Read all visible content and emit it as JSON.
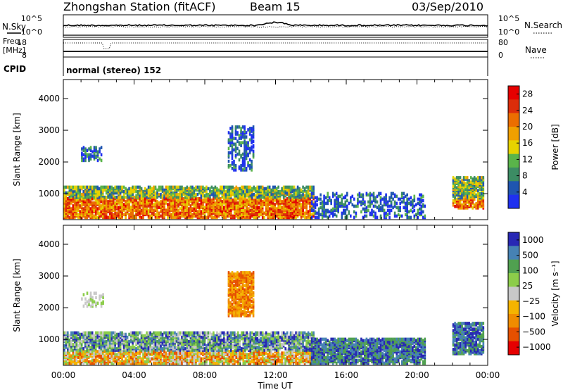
{
  "header": {
    "station": "Zhongshan Station (fitACF)",
    "beam": "Beam 15",
    "date": "03/Sep/2010"
  },
  "strip1": {
    "left_label": "N.Sky",
    "left_top": "10^5",
    "left_bottom": "10^0",
    "right_top": "10^5",
    "right_bottom": "10^0",
    "right_label": "N.Search"
  },
  "strip2": {
    "left_label_1": "Freq.",
    "left_label_2": "[MHz]",
    "left_top": "18",
    "left_bottom": "8",
    "right_top": "80",
    "right_bottom": "0",
    "right_label": "Nave",
    "cpid_label": "CPID",
    "cpid_value": "normal (stereo) 152"
  },
  "colors": {
    "power": [
      "#1f30f0",
      "#1f55b0",
      "#3c8c64",
      "#5ab44a",
      "#e6d200",
      "#f0a000",
      "#eb6e00",
      "#dc2d0a",
      "#e60000"
    ],
    "velocity": [
      "#e60000",
      "#e65000",
      "#f08c00",
      "#f5b400",
      "#c8c8c8",
      "#8ccd4a",
      "#50a050",
      "#4682b4",
      "#2828b4"
    ]
  },
  "chart_data": [
    {
      "type": "heatmap",
      "title": "Power",
      "ylabel": "Slant Range [km]",
      "xlabel": "Time UT",
      "x_ticks": [
        "00:00",
        "04:00",
        "08:00",
        "12:00",
        "16:00",
        "20:00",
        "00:00"
      ],
      "y_ticks": [
        1000,
        2000,
        3000,
        4000
      ],
      "ylim": [
        180,
        4600
      ],
      "colorbar": {
        "label": "Power [dB]",
        "ticks": [
          4,
          8,
          12,
          16,
          20,
          24,
          28
        ],
        "range": [
          0,
          30
        ]
      },
      "echo_regions": [
        {
          "x": [
            0,
            14.2
          ],
          "y": [
            300,
            1300
          ],
          "strength": "high"
        },
        {
          "x": [
            1.0,
            2.3
          ],
          "y": [
            2100,
            2550
          ],
          "strength": "low"
        },
        {
          "x": [
            9.3,
            10.8
          ],
          "y": [
            1800,
            3200
          ],
          "strength": "low"
        },
        {
          "x": [
            14.0,
            20.5
          ],
          "y": [
            300,
            1100
          ],
          "strength": "low"
        },
        {
          "x": [
            22.0,
            23.8
          ],
          "y": [
            600,
            1600
          ],
          "strength": "high"
        }
      ]
    },
    {
      "type": "heatmap",
      "title": "Velocity",
      "ylabel": "Slant Range [km]",
      "xlabel": "Time UT",
      "x_ticks": [
        "00:00",
        "04:00",
        "08:00",
        "12:00",
        "16:00",
        "20:00",
        "00:00"
      ],
      "y_ticks": [
        1000,
        2000,
        3000,
        4000
      ],
      "ylim": [
        180,
        4600
      ],
      "colorbar": {
        "label": "Velocity [m s⁻¹]",
        "ticks": [
          "1000",
          "500",
          "100",
          "25",
          "−25",
          "−100",
          "−500",
          "−1000"
        ]
      },
      "echo_regions": [
        {
          "x": [
            0,
            14.2
          ],
          "y": [
            300,
            1300
          ],
          "sign": "mixed"
        },
        {
          "x": [
            1.0,
            2.3
          ],
          "y": [
            2100,
            2550
          ],
          "sign": "near-zero"
        },
        {
          "x": [
            9.3,
            10.8
          ],
          "y": [
            1800,
            3200
          ],
          "sign": "negative"
        },
        {
          "x": [
            14.0,
            20.5
          ],
          "y": [
            300,
            1100
          ],
          "sign": "positive"
        },
        {
          "x": [
            22.0,
            23.8
          ],
          "y": [
            600,
            1600
          ],
          "sign": "positive"
        }
      ]
    }
  ]
}
